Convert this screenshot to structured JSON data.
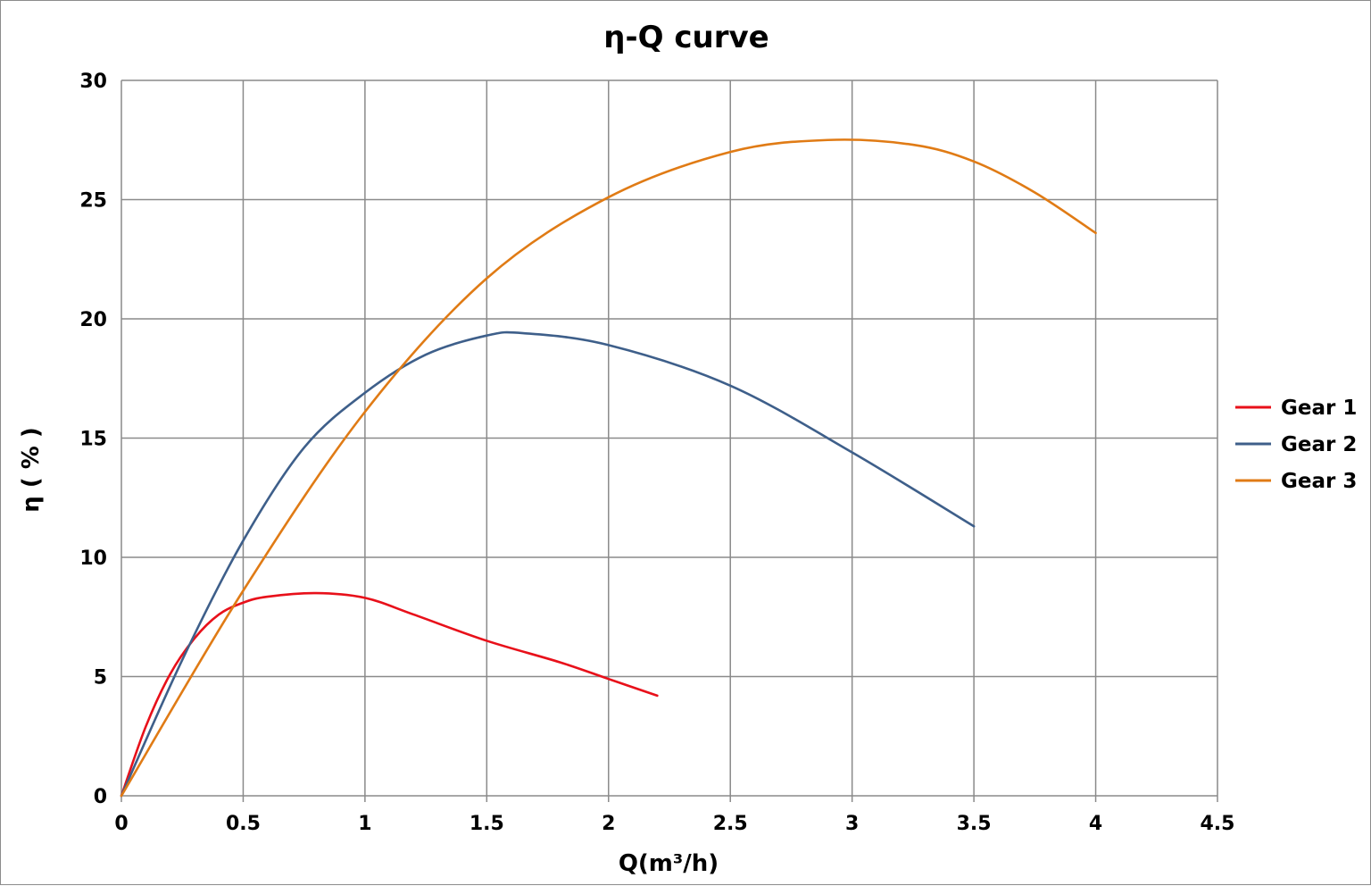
{
  "chart_data": {
    "type": "line",
    "title": "η-Q  curve",
    "xlabel": "Q(m³/h)",
    "ylabel": "η ( % )",
    "xlim": [
      0,
      4.5
    ],
    "ylim": [
      0,
      30
    ],
    "xticks": [
      "0",
      "0.5",
      "1",
      "1.5",
      "2",
      "2.5",
      "3",
      "3.5",
      "4",
      "4.5"
    ],
    "yticks": [
      "0",
      "5",
      "10",
      "15",
      "20",
      "25",
      "30"
    ],
    "grid": true,
    "legend_position": "right",
    "series": [
      {
        "name": "Gear 1",
        "color": "#e8101a",
        "x": [
          0,
          0.1,
          0.2,
          0.3,
          0.4,
          0.5,
          0.6,
          0.8,
          1.0,
          1.2,
          1.5,
          1.8,
          2.0,
          2.2
        ],
        "y": [
          0,
          2.9,
          5.1,
          6.6,
          7.6,
          8.1,
          8.35,
          8.5,
          8.3,
          7.6,
          6.5,
          5.6,
          4.9,
          4.2
        ]
      },
      {
        "name": "Gear 2",
        "color": "#3e5f8a",
        "x": [
          0,
          0.25,
          0.5,
          0.75,
          1.0,
          1.25,
          1.5,
          1.65,
          2.0,
          2.5,
          3.0,
          3.5
        ],
        "y": [
          0,
          5.7,
          10.7,
          14.6,
          16.9,
          18.5,
          19.3,
          19.4,
          18.9,
          17.2,
          14.4,
          11.3
        ]
      },
      {
        "name": "Gear 3",
        "color": "#e07b15",
        "x": [
          0,
          0.5,
          1.0,
          1.5,
          2.0,
          2.5,
          2.9,
          3.25,
          3.5,
          3.75,
          4.0
        ],
        "y": [
          0,
          8.6,
          16.1,
          21.7,
          25.1,
          27.0,
          27.5,
          27.3,
          26.6,
          25.3,
          23.6
        ]
      }
    ]
  }
}
